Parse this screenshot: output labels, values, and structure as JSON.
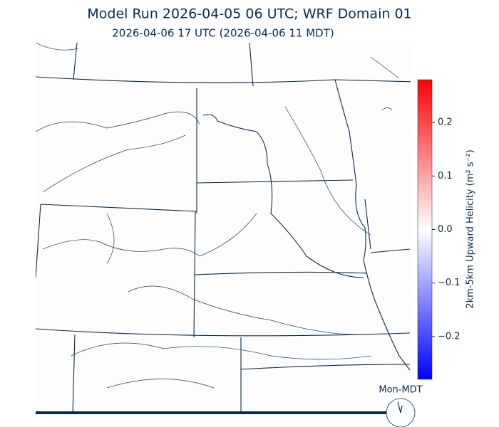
{
  "header": {
    "title": "Model Run 2026-04-05 06 UTC; WRF Domain 01",
    "subtitle": "2026-04-06 17 UTC  (2026-04-06 11 MDT)"
  },
  "colorbar": {
    "label": "2km-5km Upward Helicity (m² s⁻²)",
    "lim": [
      -0.28,
      0.28
    ],
    "ticks": [
      0.2,
      0.1,
      {
        "value": 0,
        "label": "0.0"
      },
      {
        "value": -0.1,
        "label": "−0.1"
      },
      {
        "value": -0.2,
        "label": "−0.2"
      }
    ],
    "colors": [
      "#0000ff",
      "#ffffff",
      "#ff0000"
    ]
  },
  "clock": {
    "label": "Mon-MDT"
  }
}
